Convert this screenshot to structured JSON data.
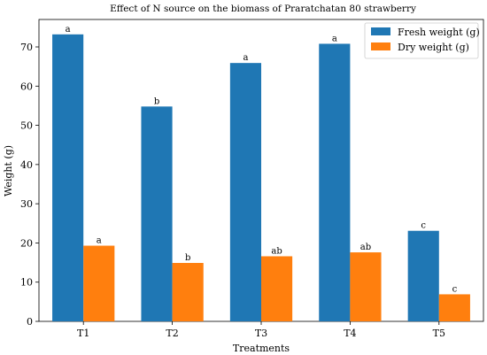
{
  "chart_data": {
    "type": "bar",
    "title": "Effect of N source on the biomass of Praratchatan 80 strawberry",
    "xlabel": "Treatments",
    "ylabel": "Weight (g)",
    "ylim": [
      0,
      77
    ],
    "yticks": [
      0,
      10,
      20,
      30,
      40,
      50,
      60,
      70
    ],
    "categories": [
      "T1",
      "T2",
      "T3",
      "T4",
      "T5"
    ],
    "series": [
      {
        "name": "Fresh weight (g)",
        "color": "#1f77b4",
        "values": [
          73.2,
          54.8,
          65.9,
          70.8,
          23.1
        ],
        "labels": [
          "a",
          "b",
          "a",
          "a",
          "c"
        ]
      },
      {
        "name": "Dry weight (g)",
        "color": "#ff7f0e",
        "values": [
          19.3,
          14.9,
          16.6,
          17.6,
          6.9
        ],
        "labels": [
          "a",
          "b",
          "ab",
          "ab",
          "c"
        ]
      }
    ],
    "legend": "top-right",
    "grid": false
  }
}
